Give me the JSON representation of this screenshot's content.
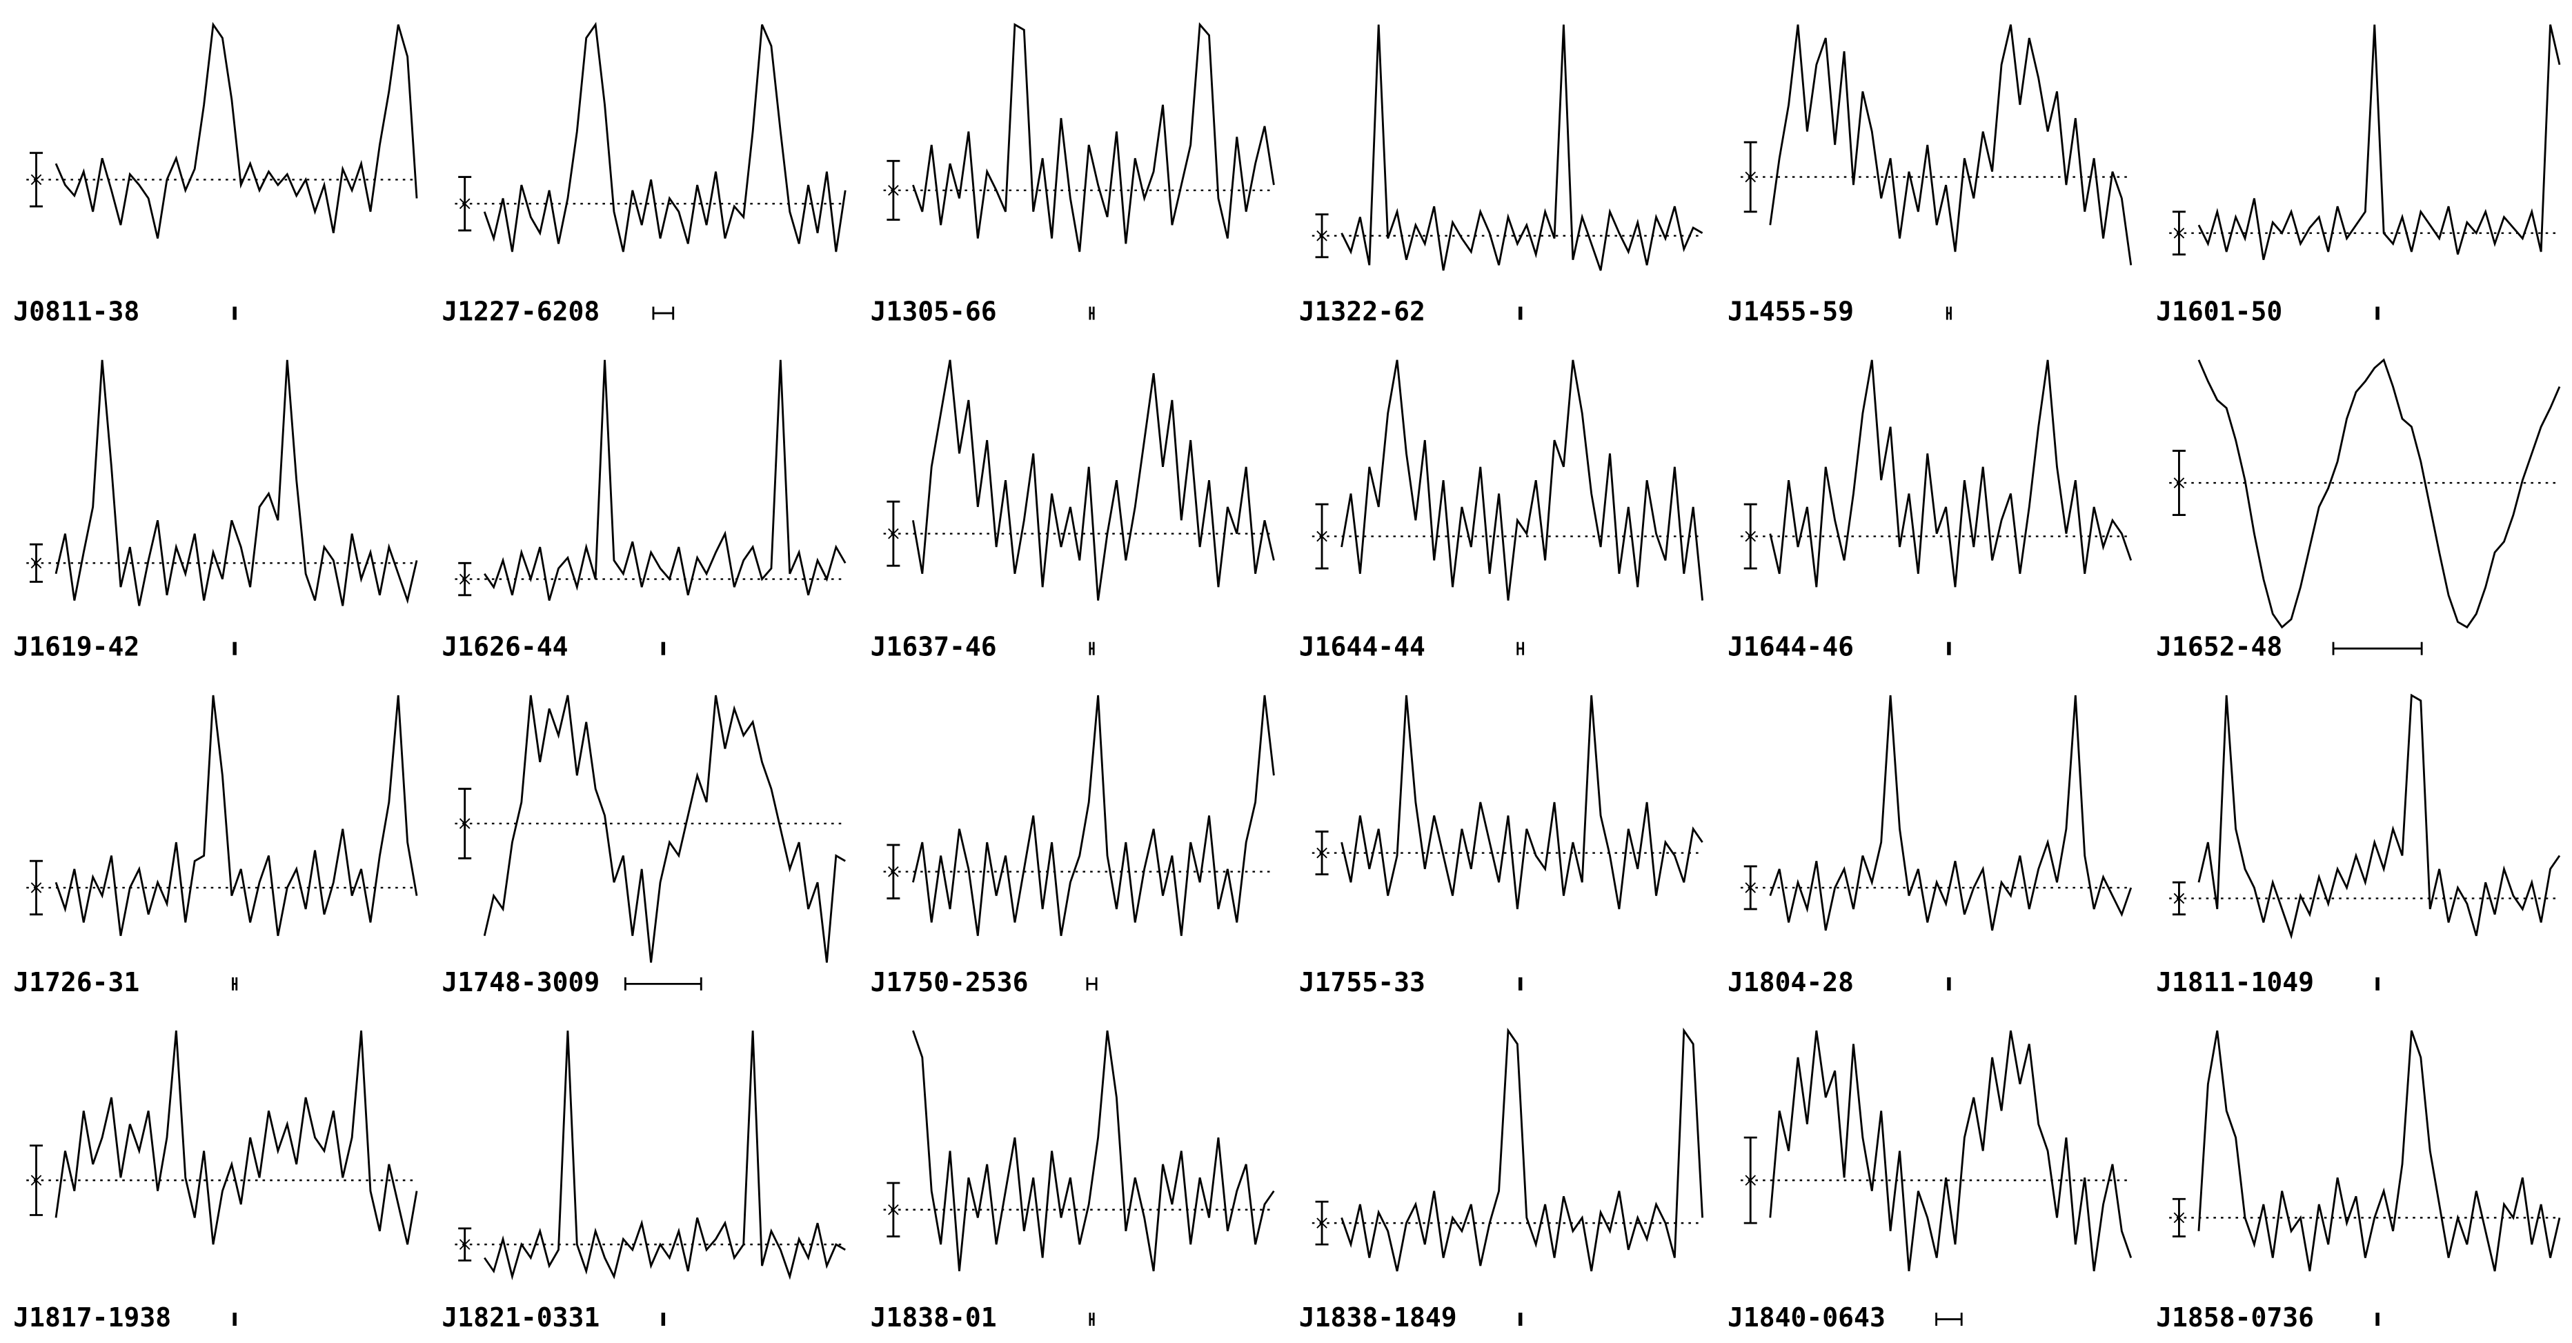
{
  "chart_data": [
    {
      "type": "line",
      "title": "J0811-38",
      "values": [
        48,
        40,
        36,
        45,
        30,
        50,
        38,
        25,
        44,
        40,
        35,
        20,
        42,
        50,
        38,
        46,
        70,
        100,
        95,
        72,
        40,
        48,
        38,
        45,
        40,
        44,
        36,
        42,
        30,
        40,
        22,
        46,
        38,
        48,
        30,
        55,
        75,
        100,
        88,
        35
      ],
      "baseline": 42,
      "error": 10,
      "resolution": 0.01,
      "ylim": [
        0,
        100
      ],
      "xlim": [
        0,
        2
      ]
    },
    {
      "type": "line",
      "title": "J1227-6208",
      "values": [
        30,
        20,
        35,
        15,
        40,
        28,
        22,
        38,
        18,
        35,
        60,
        95,
        100,
        70,
        30,
        15,
        38,
        25,
        42,
        20,
        35,
        30,
        18,
        40,
        25,
        45,
        20,
        32,
        28,
        60,
        100,
        92,
        60,
        30,
        18,
        40,
        22,
        45,
        15,
        38
      ],
      "baseline": 33,
      "error": 10,
      "resolution": 0.11,
      "ylim": [
        0,
        100
      ],
      "xlim": [
        0,
        2
      ]
    },
    {
      "type": "line",
      "title": "J1305-66",
      "values": [
        40,
        30,
        55,
        25,
        48,
        35,
        60,
        20,
        45,
        38,
        30,
        100,
        98,
        30,
        50,
        20,
        65,
        35,
        15,
        55,
        40,
        28,
        60,
        18,
        50,
        35,
        45,
        70,
        25,
        40,
        55,
        100,
        96,
        35,
        20,
        58,
        30,
        48,
        62,
        40
      ],
      "baseline": 38,
      "error": 11,
      "resolution": 0.02,
      "ylim": [
        0,
        100
      ],
      "xlim": [
        0,
        2
      ]
    },
    {
      "type": "line",
      "title": "J1322-62",
      "values": [
        22,
        15,
        28,
        10,
        100,
        20,
        30,
        12,
        25,
        18,
        32,
        8,
        26,
        20,
        15,
        30,
        22,
        10,
        28,
        18,
        25,
        14,
        30,
        20,
        100,
        12,
        28,
        18,
        8,
        30,
        22,
        15,
        26,
        10,
        28,
        20,
        32,
        16,
        24,
        22
      ],
      "baseline": 21,
      "error": 8,
      "resolution": 0.01,
      "ylim": [
        0,
        100
      ],
      "xlim": [
        0,
        2
      ]
    },
    {
      "type": "line",
      "title": "J1455-59",
      "values": [
        25,
        50,
        70,
        100,
        60,
        85,
        95,
        55,
        90,
        40,
        75,
        60,
        35,
        50,
        20,
        45,
        30,
        55,
        25,
        40,
        15,
        50,
        35,
        60,
        45,
        85,
        100,
        70,
        95,
        80,
        60,
        75,
        40,
        65,
        30,
        50,
        20,
        45,
        35,
        10
      ],
      "baseline": 43,
      "error": 13,
      "resolution": 0.02,
      "ylim": [
        0,
        100
      ],
      "xlim": [
        0,
        2
      ]
    },
    {
      "type": "line",
      "title": "J1601-50",
      "values": [
        25,
        18,
        30,
        15,
        28,
        20,
        35,
        12,
        26,
        22,
        30,
        18,
        24,
        28,
        15,
        32,
        20,
        25,
        30,
        100,
        22,
        18,
        28,
        15,
        30,
        25,
        20,
        32,
        14,
        26,
        22,
        30,
        18,
        28,
        24,
        20,
        30,
        15,
        100,
        85
      ],
      "baseline": 22,
      "error": 8,
      "resolution": 0.01,
      "ylim": [
        0,
        100
      ],
      "xlim": [
        0,
        2
      ]
    },
    {
      "type": "line",
      "title": "J1619-42",
      "values": [
        20,
        35,
        10,
        28,
        45,
        100,
        60,
        15,
        30,
        8,
        25,
        40,
        12,
        30,
        20,
        35,
        10,
        28,
        18,
        40,
        30,
        15,
        45,
        50,
        40,
        100,
        55,
        20,
        10,
        30,
        25,
        8,
        35,
        18,
        28,
        12,
        30,
        20,
        10,
        25
      ],
      "baseline": 24,
      "error": 7,
      "resolution": 0.01,
      "ylim": [
        0,
        100
      ],
      "xlim": [
        0,
        2
      ]
    },
    {
      "type": "line",
      "title": "J1626-44",
      "values": [
        20,
        15,
        25,
        12,
        28,
        18,
        30,
        10,
        22,
        26,
        15,
        30,
        18,
        100,
        25,
        20,
        32,
        15,
        28,
        22,
        18,
        30,
        12,
        26,
        20,
        28,
        35,
        15,
        25,
        30,
        18,
        22,
        100,
        20,
        28,
        12,
        25,
        18,
        30,
        24
      ],
      "baseline": 18,
      "error": 6,
      "resolution": 0.01,
      "ylim": [
        0,
        100
      ],
      "xlim": [
        0,
        2
      ]
    },
    {
      "type": "line",
      "title": "J1637-46",
      "values": [
        40,
        20,
        60,
        80,
        100,
        65,
        85,
        45,
        70,
        30,
        55,
        20,
        40,
        65,
        15,
        50,
        30,
        45,
        25,
        60,
        10,
        35,
        55,
        25,
        45,
        70,
        95,
        60,
        85,
        40,
        70,
        30,
        55,
        15,
        45,
        35,
        60,
        20,
        40,
        25
      ],
      "baseline": 35,
      "error": 12,
      "resolution": 0.02,
      "ylim": [
        0,
        100
      ],
      "xlim": [
        0,
        2
      ]
    },
    {
      "type": "line",
      "title": "J1644-44",
      "values": [
        30,
        50,
        20,
        60,
        45,
        80,
        100,
        65,
        40,
        70,
        25,
        55,
        15,
        45,
        30,
        60,
        20,
        50,
        10,
        40,
        35,
        55,
        25,
        70,
        60,
        100,
        80,
        50,
        30,
        65,
        20,
        45,
        15,
        55,
        35,
        25,
        60,
        20,
        45,
        10
      ],
      "baseline": 34,
      "error": 12,
      "resolution": 0.03,
      "ylim": [
        0,
        100
      ],
      "xlim": [
        0,
        2
      ]
    },
    {
      "type": "line",
      "title": "J1644-46",
      "values": [
        35,
        20,
        55,
        30,
        45,
        15,
        60,
        40,
        25,
        50,
        80,
        100,
        55,
        75,
        30,
        50,
        20,
        65,
        35,
        45,
        15,
        55,
        30,
        60,
        25,
        40,
        50,
        20,
        45,
        75,
        100,
        60,
        35,
        55,
        20,
        45,
        30,
        40,
        35,
        25
      ],
      "baseline": 34,
      "error": 12,
      "resolution": 0.01,
      "ylim": [
        0,
        100
      ],
      "xlim": [
        0,
        2
      ]
    },
    {
      "type": "line",
      "title": "J1652-48",
      "values": [
        100,
        92,
        85,
        82,
        70,
        55,
        35,
        18,
        5,
        0,
        3,
        15,
        30,
        45,
        52,
        62,
        78,
        88,
        92,
        97,
        100,
        90,
        78,
        75,
        62,
        45,
        28,
        12,
        2,
        0,
        5,
        15,
        28,
        32,
        42,
        55,
        65,
        75,
        82,
        90
      ],
      "baseline": 54,
      "error": 12,
      "resolution": 0.49,
      "ylim": [
        0,
        100
      ],
      "xlim": [
        0,
        2
      ]
    },
    {
      "type": "line",
      "title": "J1726-31",
      "values": [
        30,
        20,
        35,
        15,
        32,
        25,
        40,
        10,
        28,
        35,
        18,
        30,
        22,
        45,
        15,
        38,
        40,
        100,
        70,
        25,
        35,
        15,
        30,
        40,
        10,
        28,
        35,
        20,
        42,
        18,
        30,
        50,
        25,
        35,
        15,
        40,
        60,
        100,
        45,
        25
      ],
      "baseline": 28,
      "error": 10,
      "resolution": 0.02,
      "ylim": [
        0,
        100
      ],
      "xlim": [
        0,
        2
      ]
    },
    {
      "type": "line",
      "title": "J1748-3009",
      "values": [
        10,
        25,
        20,
        45,
        60,
        100,
        75,
        95,
        85,
        100,
        70,
        90,
        65,
        55,
        30,
        40,
        10,
        35,
        0,
        30,
        45,
        40,
        55,
        70,
        60,
        100,
        80,
        95,
        85,
        90,
        75,
        65,
        50,
        35,
        45,
        20,
        30,
        0,
        40,
        38
      ],
      "baseline": 52,
      "error": 13,
      "resolution": 0.42,
      "ylim": [
        0,
        100
      ],
      "xlim": [
        0,
        2
      ]
    },
    {
      "type": "line",
      "title": "J1750-2536",
      "values": [
        30,
        45,
        15,
        40,
        20,
        50,
        35,
        10,
        45,
        25,
        40,
        15,
        35,
        55,
        20,
        45,
        10,
        30,
        40,
        60,
        100,
        40,
        20,
        45,
        15,
        35,
        50,
        25,
        40,
        10,
        45,
        30,
        55,
        20,
        35,
        15,
        45,
        60,
        100,
        70
      ],
      "baseline": 34,
      "error": 10,
      "resolution": 0.05,
      "ylim": [
        0,
        100
      ],
      "xlim": [
        0,
        2
      ]
    },
    {
      "type": "line",
      "title": "J1755-33",
      "values": [
        45,
        30,
        55,
        35,
        50,
        25,
        40,
        100,
        60,
        35,
        55,
        40,
        25,
        50,
        35,
        60,
        45,
        30,
        55,
        20,
        50,
        40,
        35,
        60,
        25,
        45,
        30,
        100,
        55,
        40,
        20,
        50,
        35,
        60,
        25,
        45,
        40,
        30,
        50,
        45
      ],
      "baseline": 41,
      "error": 8,
      "resolution": 0.01,
      "ylim": [
        0,
        100
      ],
      "xlim": [
        0,
        2
      ]
    },
    {
      "type": "line",
      "title": "J1804-28",
      "values": [
        25,
        35,
        15,
        30,
        20,
        38,
        12,
        28,
        35,
        20,
        40,
        30,
        45,
        100,
        50,
        25,
        35,
        15,
        30,
        22,
        38,
        18,
        28,
        35,
        12,
        30,
        25,
        40,
        20,
        35,
        45,
        30,
        50,
        100,
        40,
        20,
        32,
        25,
        18,
        28
      ],
      "baseline": 28,
      "error": 8,
      "resolution": 0.01,
      "ylim": [
        0,
        100
      ],
      "xlim": [
        0,
        2
      ]
    },
    {
      "type": "line",
      "title": "J1811-1049",
      "values": [
        30,
        45,
        20,
        100,
        50,
        35,
        28,
        15,
        30,
        20,
        10,
        25,
        18,
        32,
        22,
        35,
        28,
        40,
        30,
        45,
        35,
        50,
        40,
        100,
        98,
        20,
        35,
        15,
        28,
        22,
        10,
        30,
        18,
        35,
        25,
        20,
        30,
        15,
        35,
        40
      ],
      "baseline": 24,
      "error": 6,
      "resolution": 0.01,
      "ylim": [
        0,
        100
      ],
      "xlim": [
        0,
        2
      ]
    },
    {
      "type": "line",
      "title": "J1817-1938",
      "values": [
        30,
        55,
        40,
        70,
        50,
        60,
        75,
        45,
        65,
        55,
        70,
        40,
        60,
        100,
        45,
        30,
        55,
        20,
        40,
        50,
        35,
        60,
        45,
        70,
        55,
        65,
        50,
        75,
        60,
        55,
        70,
        45,
        60,
        100,
        40,
        25,
        50,
        35,
        20,
        40
      ],
      "baseline": 44,
      "error": 13,
      "resolution": 0.01,
      "ylim": [
        0,
        100
      ],
      "xlim": [
        0,
        2
      ]
    },
    {
      "type": "line",
      "title": "J1821-0331",
      "values": [
        15,
        10,
        22,
        8,
        20,
        15,
        25,
        12,
        18,
        100,
        20,
        10,
        25,
        15,
        8,
        22,
        18,
        28,
        12,
        20,
        15,
        25,
        10,
        30,
        18,
        22,
        28,
        15,
        20,
        100,
        12,
        25,
        18,
        8,
        22,
        15,
        28,
        12,
        20,
        18
      ],
      "baseline": 20,
      "error": 6,
      "resolution": 0.01,
      "ylim": [
        0,
        100
      ],
      "xlim": [
        0,
        2
      ]
    },
    {
      "type": "line",
      "title": "J1838-01",
      "values": [
        100,
        90,
        40,
        20,
        55,
        10,
        45,
        30,
        50,
        20,
        40,
        60,
        25,
        45,
        15,
        55,
        30,
        45,
        20,
        35,
        60,
        100,
        75,
        25,
        45,
        30,
        10,
        50,
        35,
        55,
        20,
        45,
        30,
        60,
        25,
        40,
        50,
        20,
        35,
        40
      ],
      "baseline": 33,
      "error": 10,
      "resolution": 0.02,
      "ylim": [
        0,
        100
      ],
      "xlim": [
        0,
        2
      ]
    },
    {
      "type": "line",
      "title": "J1838-1849",
      "values": [
        30,
        20,
        35,
        15,
        32,
        25,
        10,
        28,
        35,
        20,
        40,
        15,
        30,
        25,
        35,
        12,
        28,
        40,
        100,
        95,
        30,
        20,
        35,
        15,
        38,
        25,
        30,
        10,
        32,
        25,
        40,
        18,
        30,
        22,
        35,
        28,
        15,
        100,
        95,
        30
      ],
      "baseline": 28,
      "error": 8,
      "resolution": 0.01,
      "ylim": [
        0,
        100
      ],
      "xlim": [
        0,
        2
      ]
    },
    {
      "type": "line",
      "title": "J1840-0643",
      "values": [
        30,
        70,
        55,
        90,
        65,
        100,
        75,
        85,
        45,
        95,
        60,
        40,
        70,
        25,
        55,
        10,
        40,
        30,
        15,
        45,
        20,
        60,
        75,
        55,
        90,
        70,
        100,
        80,
        95,
        65,
        55,
        30,
        60,
        20,
        45,
        10,
        35,
        50,
        25,
        15
      ],
      "baseline": 44,
      "error": 16,
      "resolution": 0.14,
      "ylim": [
        0,
        100
      ],
      "xlim": [
        0,
        2
      ]
    },
    {
      "type": "line",
      "title": "J1858-0736",
      "values": [
        25,
        80,
        100,
        70,
        60,
        30,
        20,
        35,
        15,
        40,
        25,
        30,
        10,
        35,
        20,
        45,
        28,
        38,
        15,
        30,
        40,
        25,
        50,
        100,
        90,
        55,
        35,
        15,
        30,
        20,
        40,
        25,
        10,
        35,
        30,
        45,
        20,
        35,
        15,
        30
      ],
      "baseline": 30,
      "error": 7,
      "resolution": 0.01,
      "ylim": [
        0,
        100
      ],
      "xlim": [
        0,
        2
      ]
    }
  ]
}
